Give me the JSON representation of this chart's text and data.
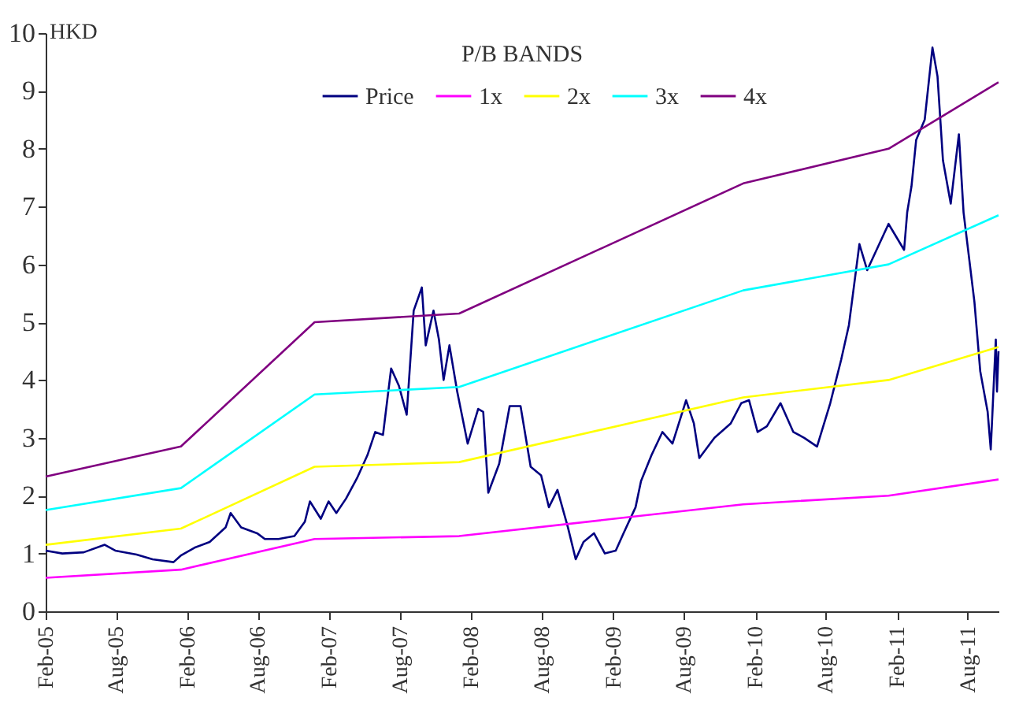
{
  "chart_data": {
    "type": "line",
    "title": "P/B BANDS",
    "ylabel": "HKD",
    "xlim": [
      "2005-02-01",
      "2011-10-20"
    ],
    "ylim": [
      0,
      10
    ],
    "yticks": [
      0,
      1,
      2,
      3,
      4,
      5,
      6,
      7,
      8,
      9,
      10
    ],
    "xticks": [
      {
        "value": "2005-02-01",
        "label": "Feb-05"
      },
      {
        "value": "2005-08-01",
        "label": "Aug-05"
      },
      {
        "value": "2006-02-01",
        "label": "Feb-06"
      },
      {
        "value": "2006-08-01",
        "label": "Aug-06"
      },
      {
        "value": "2007-02-01",
        "label": "Feb-07"
      },
      {
        "value": "2007-08-01",
        "label": "Aug-07"
      },
      {
        "value": "2008-02-01",
        "label": "Feb-08"
      },
      {
        "value": "2008-08-01",
        "label": "Aug-08"
      },
      {
        "value": "2009-02-01",
        "label": "Feb-09"
      },
      {
        "value": "2009-08-01",
        "label": "Aug-09"
      },
      {
        "value": "2010-02-01",
        "label": "Feb-10"
      },
      {
        "value": "2010-08-01",
        "label": "Aug-10"
      },
      {
        "value": "2011-02-01",
        "label": "Feb-11"
      },
      {
        "value": "2011-08-01",
        "label": "Aug-11"
      }
    ],
    "grid": false,
    "legend": "top",
    "marker": "none",
    "line_style": "solid",
    "series": [
      {
        "name": "Price",
        "color": "#000080",
        "x": [
          "2005-02-01",
          "2005-03-16",
          "2005-05-10",
          "2005-07-03",
          "2005-07-30",
          "2005-09-23",
          "2005-11-03",
          "2005-12-27",
          "2006-01-16",
          "2006-02-19",
          "2006-03-30",
          "2006-05-10",
          "2006-05-23",
          "2006-06-19",
          "2006-07-30",
          "2006-08-19",
          "2006-09-23",
          "2006-11-03",
          "2006-11-30",
          "2006-12-13",
          "2007-01-10",
          "2007-01-30",
          "2007-02-19",
          "2007-03-16",
          "2007-04-13",
          "2007-05-10",
          "2007-05-30",
          "2007-06-19",
          "2007-07-10",
          "2007-07-30",
          "2007-08-19",
          "2007-09-06",
          "2007-09-27",
          "2007-10-07",
          "2007-10-27",
          "2007-11-10",
          "2007-11-22",
          "2007-12-07",
          "2007-12-27",
          "2008-01-23",
          "2008-02-19",
          "2008-03-03",
          "2008-03-16",
          "2008-04-13",
          "2008-05-10",
          "2008-06-07",
          "2008-07-03",
          "2008-07-30",
          "2008-08-19",
          "2008-09-10",
          "2008-10-07",
          "2008-10-27",
          "2008-11-16",
          "2008-12-13",
          "2009-01-10",
          "2009-02-07",
          "2009-02-27",
          "2009-03-30",
          "2009-04-13",
          "2009-05-10",
          "2009-06-07",
          "2009-07-03",
          "2009-08-07",
          "2009-08-27",
          "2009-09-10",
          "2009-10-19",
          "2009-11-30",
          "2009-12-27",
          "2010-01-16",
          "2010-02-07",
          "2010-03-03",
          "2010-04-07",
          "2010-05-10",
          "2010-06-07",
          "2010-07-10",
          "2010-08-13",
          "2010-09-10",
          "2010-09-30",
          "2010-10-27",
          "2010-11-16",
          "2011-01-10",
          "2011-02-19",
          "2011-02-27",
          "2011-03-10",
          "2011-03-22",
          "2011-04-13",
          "2011-05-03",
          "2011-05-16",
          "2011-05-30",
          "2011-06-19",
          "2011-07-10",
          "2011-07-22",
          "2011-08-19",
          "2011-09-03",
          "2011-09-22",
          "2011-09-30",
          "2011-10-13",
          "2011-10-16",
          "2011-10-20"
        ],
        "values": [
          1.05,
          1.0,
          1.02,
          1.15,
          1.05,
          0.98,
          0.9,
          0.85,
          0.97,
          1.1,
          1.2,
          1.45,
          1.7,
          1.45,
          1.35,
          1.25,
          1.25,
          1.3,
          1.55,
          1.9,
          1.6,
          1.9,
          1.7,
          1.95,
          2.3,
          2.7,
          3.1,
          3.05,
          4.2,
          3.9,
          3.4,
          5.2,
          5.6,
          4.6,
          5.2,
          4.7,
          4.0,
          4.6,
          3.8,
          2.9,
          3.5,
          3.45,
          2.05,
          2.55,
          3.55,
          3.55,
          2.5,
          2.35,
          1.8,
          2.1,
          1.45,
          0.9,
          1.2,
          1.35,
          1.0,
          1.05,
          1.35,
          1.8,
          2.25,
          2.7,
          3.1,
          2.9,
          3.65,
          3.25,
          2.65,
          3.0,
          3.25,
          3.6,
          3.65,
          3.1,
          3.2,
          3.6,
          3.1,
          3.0,
          2.85,
          3.6,
          4.35,
          4.95,
          6.35,
          5.9,
          6.7,
          6.25,
          6.9,
          7.35,
          8.15,
          8.5,
          9.75,
          9.25,
          7.8,
          7.05,
          8.25,
          6.9,
          5.35,
          4.15,
          3.45,
          2.8,
          4.7,
          3.8,
          4.5
        ]
      },
      {
        "name": "1x",
        "color": "#ff00ff",
        "x": [
          "2005-02-01",
          "2006-01-15",
          "2006-12-25",
          "2008-01-01",
          "2010-01-01",
          "2011-01-10",
          "2011-10-20"
        ],
        "values": [
          0.58,
          0.72,
          1.25,
          1.3,
          1.85,
          2.0,
          2.28
        ]
      },
      {
        "name": "2x",
        "color": "#ffff00",
        "x": [
          "2005-02-01",
          "2006-01-15",
          "2006-12-25",
          "2008-01-01",
          "2010-01-01",
          "2011-01-10",
          "2011-10-20"
        ],
        "values": [
          1.15,
          1.43,
          2.5,
          2.58,
          3.7,
          4.0,
          4.57
        ]
      },
      {
        "name": "3x",
        "color": "#00ffff",
        "x": [
          "2005-02-01",
          "2006-01-15",
          "2006-12-25",
          "2008-01-01",
          "2010-01-01",
          "2011-01-10",
          "2011-10-20"
        ],
        "values": [
          1.75,
          2.13,
          3.75,
          3.88,
          5.55,
          6.0,
          6.85
        ]
      },
      {
        "name": "4x",
        "color": "#800080",
        "x": [
          "2005-02-01",
          "2006-01-15",
          "2006-12-25",
          "2008-01-01",
          "2010-01-01",
          "2011-01-10",
          "2011-10-20"
        ],
        "values": [
          2.33,
          2.85,
          5.0,
          5.15,
          7.4,
          8.0,
          9.15
        ]
      }
    ]
  }
}
